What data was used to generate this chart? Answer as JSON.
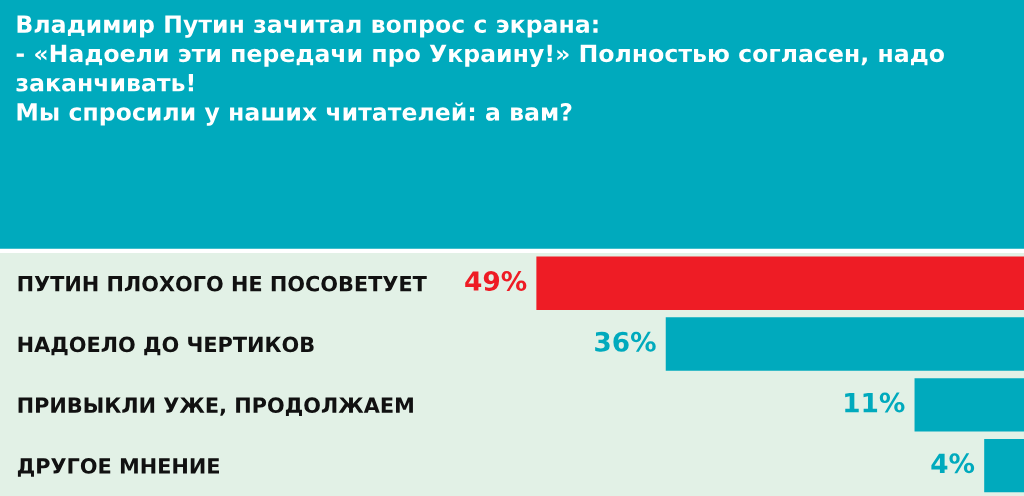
{
  "chart_data": {
    "type": "bar",
    "orientation": "horizontal",
    "title": "Владимир Путин зачитал вопрос с экрана:\n- «Надоели эти передачи про Украину!» Полностью согласен, надо заканчивать!\nМы спросили у наших читателей: а вам?",
    "categories": [
      "ПУТИН ПЛОХОГО НЕ ПОСОВЕТУЕТ",
      "НАДОЕЛО ДО ЧЕРТИКОВ",
      "ПРИВЫКЛИ УЖЕ, ПРОДОЛЖАЕМ",
      "ДРУГОЕ МНЕНИЕ"
    ],
    "values": [
      49,
      36,
      11,
      4
    ],
    "colors": [
      "#ee1c25",
      "#00aabd",
      "#00aabd",
      "#00aabd"
    ],
    "value_labels": [
      "49%",
      "36%",
      "11%",
      "4%"
    ],
    "grid": false,
    "legend": false
  }
}
